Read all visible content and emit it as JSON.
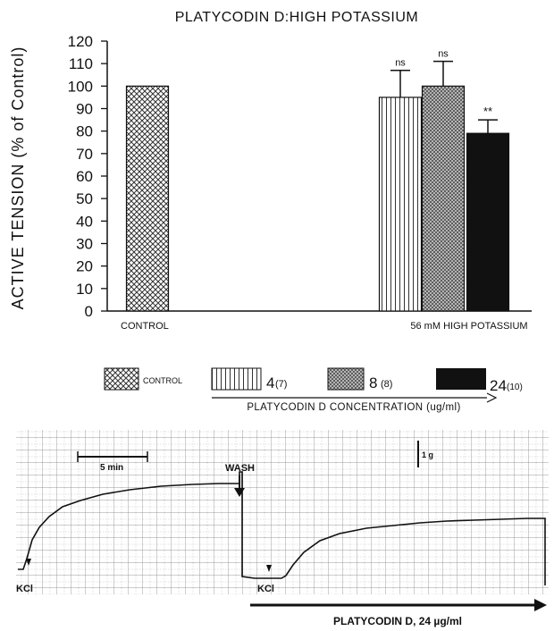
{
  "chart_data": [
    {
      "type": "bar",
      "title": "PLATYCODIN D:HIGH POTASSIUM",
      "ylabel": "ACTIVE TENSION (% of Control)",
      "ylim": [
        0,
        120
      ],
      "yticks": [
        0,
        10,
        20,
        30,
        40,
        50,
        60,
        70,
        80,
        90,
        100,
        110,
        120
      ],
      "groups": [
        "CONTROL",
        "56 mM HIGH POTASSIUM"
      ],
      "series": [
        {
          "name": "CONTROL",
          "group": "CONTROL",
          "value": 100,
          "error": null,
          "annotation": "",
          "pattern": "crosshatch"
        },
        {
          "name": "4",
          "n": "(7)",
          "group": "56 mM HIGH POTASSIUM",
          "value": 95,
          "error": 12,
          "annotation": "ns",
          "pattern": "vertical-lines"
        },
        {
          "name": "8",
          "n": "(8)",
          "group": "56 mM HIGH POTASSIUM",
          "value": 100,
          "error": 11,
          "annotation": "ns",
          "pattern": "fine-dots"
        },
        {
          "name": "24",
          "n": "(10)",
          "group": "56 mM HIGH POTASSIUM",
          "value": 79,
          "error": 6,
          "annotation": "**",
          "pattern": "solid-black"
        }
      ],
      "legend": {
        "placement": "bottom",
        "concentration_label": "PLATYCODIN D CONCENTRATION (ug/ml)"
      },
      "colors": {
        "bar_solid": "#111111",
        "pattern_ink": "#333333",
        "background": "#ffffff"
      }
    },
    {
      "type": "line",
      "description_kind": "tension-recording-trace",
      "scale_bar_time": "5 min",
      "scale_bar_force": "1 g",
      "labels": {
        "wash": "WASH",
        "kcl_left": "KCl",
        "kcl_right": "KCl"
      },
      "treatment_label": "PLATYCODIN D, 24 µg/ml"
    }
  ]
}
